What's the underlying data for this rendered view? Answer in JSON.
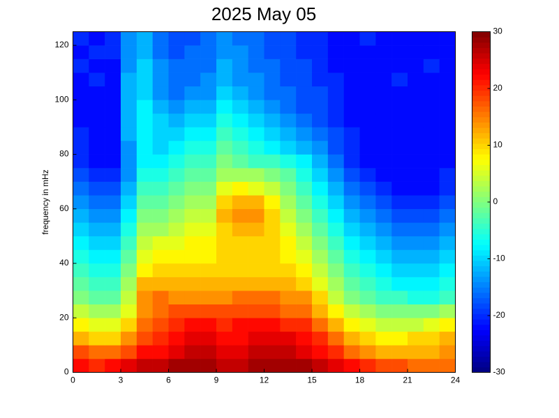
{
  "chart_data": {
    "type": "heatmap",
    "title": "2025 May 05",
    "y_label": "frequency in mHz",
    "colormap": "jet",
    "xlim": [
      0,
      24
    ],
    "xticks": [
      0,
      3,
      6,
      9,
      12,
      15,
      18,
      21,
      24
    ],
    "ylim": [
      0,
      125
    ],
    "yticks": [
      0,
      20,
      40,
      60,
      80,
      100,
      120
    ],
    "clim": [
      -30,
      30
    ],
    "cticks": [
      -30,
      -20,
      -10,
      0,
      10,
      20,
      30
    ],
    "xbins": [
      0,
      1,
      2,
      3,
      4,
      5,
      6,
      7,
      8,
      9,
      10,
      11,
      12,
      13,
      14,
      15,
      16,
      17,
      18,
      19,
      20,
      21,
      22,
      23,
      24
    ],
    "ybins": [
      0,
      5,
      10,
      15,
      20,
      25,
      30,
      35,
      40,
      45,
      50,
      55,
      60,
      65,
      70,
      75,
      80,
      85,
      90,
      95,
      100,
      105,
      110,
      115,
      120,
      125
    ],
    "z": [
      [
        22,
        20,
        22,
        24,
        26,
        26,
        28,
        28,
        28,
        26,
        26,
        28,
        28,
        28,
        28,
        26,
        24,
        22,
        20,
        18,
        18,
        16,
        16,
        16
      ],
      [
        18,
        16,
        16,
        18,
        22,
        22,
        24,
        26,
        26,
        24,
        24,
        26,
        26,
        26,
        24,
        22,
        20,
        16,
        14,
        12,
        12,
        12,
        12,
        14
      ],
      [
        12,
        10,
        10,
        14,
        18,
        20,
        22,
        24,
        24,
        22,
        22,
        24,
        24,
        24,
        22,
        20,
        16,
        12,
        10,
        8,
        8,
        10,
        10,
        12
      ],
      [
        8,
        6,
        6,
        10,
        16,
        18,
        20,
        22,
        22,
        20,
        22,
        22,
        22,
        20,
        20,
        16,
        12,
        8,
        6,
        4,
        4,
        4,
        6,
        8
      ],
      [
        4,
        2,
        2,
        6,
        14,
        16,
        18,
        18,
        18,
        18,
        18,
        18,
        18,
        16,
        16,
        12,
        8,
        4,
        2,
        0,
        0,
        0,
        0,
        2
      ],
      [
        0,
        -2,
        -2,
        4,
        14,
        16,
        14,
        14,
        14,
        14,
        16,
        16,
        16,
        14,
        14,
        10,
        4,
        0,
        -2,
        -4,
        -4,
        -6,
        -6,
        -4
      ],
      [
        -2,
        -4,
        -4,
        2,
        12,
        12,
        12,
        12,
        12,
        12,
        12,
        12,
        12,
        12,
        10,
        6,
        2,
        -2,
        -4,
        -6,
        -8,
        -8,
        -8,
        -6
      ],
      [
        -4,
        -6,
        -6,
        0,
        8,
        10,
        10,
        10,
        10,
        10,
        10,
        10,
        10,
        10,
        8,
        4,
        0,
        -4,
        -6,
        -8,
        -10,
        -10,
        -10,
        -8
      ],
      [
        -6,
        -8,
        -8,
        -2,
        6,
        8,
        8,
        8,
        8,
        10,
        10,
        10,
        10,
        8,
        6,
        2,
        -2,
        -6,
        -8,
        -10,
        -12,
        -12,
        -12,
        -10
      ],
      [
        -8,
        -10,
        -10,
        -4,
        4,
        6,
        6,
        8,
        8,
        10,
        10,
        10,
        10,
        8,
        4,
        0,
        -4,
        -8,
        -10,
        -12,
        -14,
        -14,
        -14,
        -12
      ],
      [
        -10,
        -12,
        -12,
        -6,
        2,
        2,
        4,
        6,
        6,
        10,
        12,
        12,
        10,
        6,
        2,
        -2,
        -6,
        -10,
        -12,
        -14,
        -16,
        -16,
        -16,
        -14
      ],
      [
        -12,
        -14,
        -14,
        -8,
        0,
        0,
        2,
        4,
        4,
        12,
        14,
        14,
        10,
        4,
        0,
        -4,
        -8,
        -12,
        -14,
        -16,
        -18,
        -18,
        -18,
        -16
      ],
      [
        -14,
        -16,
        -16,
        -10,
        -2,
        -2,
        0,
        2,
        2,
        10,
        12,
        12,
        8,
        2,
        -2,
        -6,
        -10,
        -14,
        -16,
        -18,
        -20,
        -20,
        -20,
        -18
      ],
      [
        -16,
        -18,
        -18,
        -12,
        -4,
        -4,
        -2,
        0,
        0,
        6,
        8,
        6,
        4,
        0,
        -4,
        -8,
        -12,
        -16,
        -18,
        -20,
        -22,
        -22,
        -22,
        -20
      ],
      [
        -18,
        -20,
        -20,
        -14,
        -6,
        -6,
        -4,
        -2,
        -2,
        2,
        2,
        2,
        0,
        -2,
        -6,
        -10,
        -14,
        -18,
        -20,
        -22,
        -22,
        -22,
        -22,
        -20
      ],
      [
        -20,
        -22,
        -22,
        -14,
        -8,
        -8,
        -6,
        -4,
        -4,
        0,
        -2,
        -4,
        -4,
        -6,
        -8,
        -12,
        -16,
        -20,
        -22,
        -22,
        -22,
        -22,
        -22,
        -22
      ],
      [
        -20,
        -22,
        -22,
        -14,
        -8,
        -10,
        -8,
        -6,
        -6,
        -2,
        -4,
        -6,
        -8,
        -10,
        -12,
        -14,
        -18,
        -20,
        -22,
        -22,
        -22,
        -22,
        -22,
        -22
      ],
      [
        -20,
        -22,
        -22,
        -12,
        -8,
        -10,
        -10,
        -8,
        -8,
        -4,
        -6,
        -8,
        -10,
        -12,
        -14,
        -16,
        -18,
        -20,
        -22,
        -22,
        -22,
        -22,
        -22,
        -22
      ],
      [
        -22,
        -22,
        -22,
        -12,
        -8,
        -10,
        -12,
        -10,
        -10,
        -6,
        -8,
        -10,
        -12,
        -14,
        -16,
        -18,
        -20,
        -22,
        -22,
        -22,
        -22,
        -22,
        -22,
        -22
      ],
      [
        -22,
        -22,
        -22,
        -12,
        -8,
        -12,
        -14,
        -12,
        -12,
        -8,
        -10,
        -12,
        -14,
        -16,
        -18,
        -18,
        -20,
        -22,
        -22,
        -22,
        -22,
        -22,
        -22,
        -22
      ],
      [
        -22,
        -22,
        -22,
        -12,
        -10,
        -14,
        -16,
        -14,
        -14,
        -10,
        -12,
        -14,
        -16,
        -16,
        -18,
        -18,
        -20,
        -22,
        -22,
        -22,
        -22,
        -22,
        -22,
        -22
      ],
      [
        -22,
        -20,
        -22,
        -12,
        -10,
        -14,
        -16,
        -16,
        -14,
        -12,
        -14,
        -14,
        -16,
        -18,
        -18,
        -20,
        -20,
        -22,
        -22,
        -22,
        -20,
        -22,
        -22,
        -22
      ],
      [
        -20,
        -22,
        -22,
        -14,
        -10,
        -14,
        -16,
        -16,
        -16,
        -12,
        -14,
        -16,
        -16,
        -18,
        -18,
        -20,
        -22,
        -22,
        -22,
        -22,
        -22,
        -22,
        -20,
        -22
      ],
      [
        -22,
        -20,
        -20,
        -14,
        -12,
        -16,
        -18,
        -16,
        -16,
        -14,
        -14,
        -16,
        -18,
        -18,
        -20,
        -20,
        -22,
        -22,
        -22,
        -22,
        -22,
        -22,
        -22,
        -22
      ],
      [
        -20,
        -22,
        -20,
        -14,
        -12,
        -16,
        -18,
        -18,
        -16,
        -14,
        -16,
        -16,
        -18,
        -18,
        -20,
        -20,
        -22,
        -22,
        -20,
        -22,
        -22,
        -22,
        -22,
        -22
      ]
    ]
  }
}
